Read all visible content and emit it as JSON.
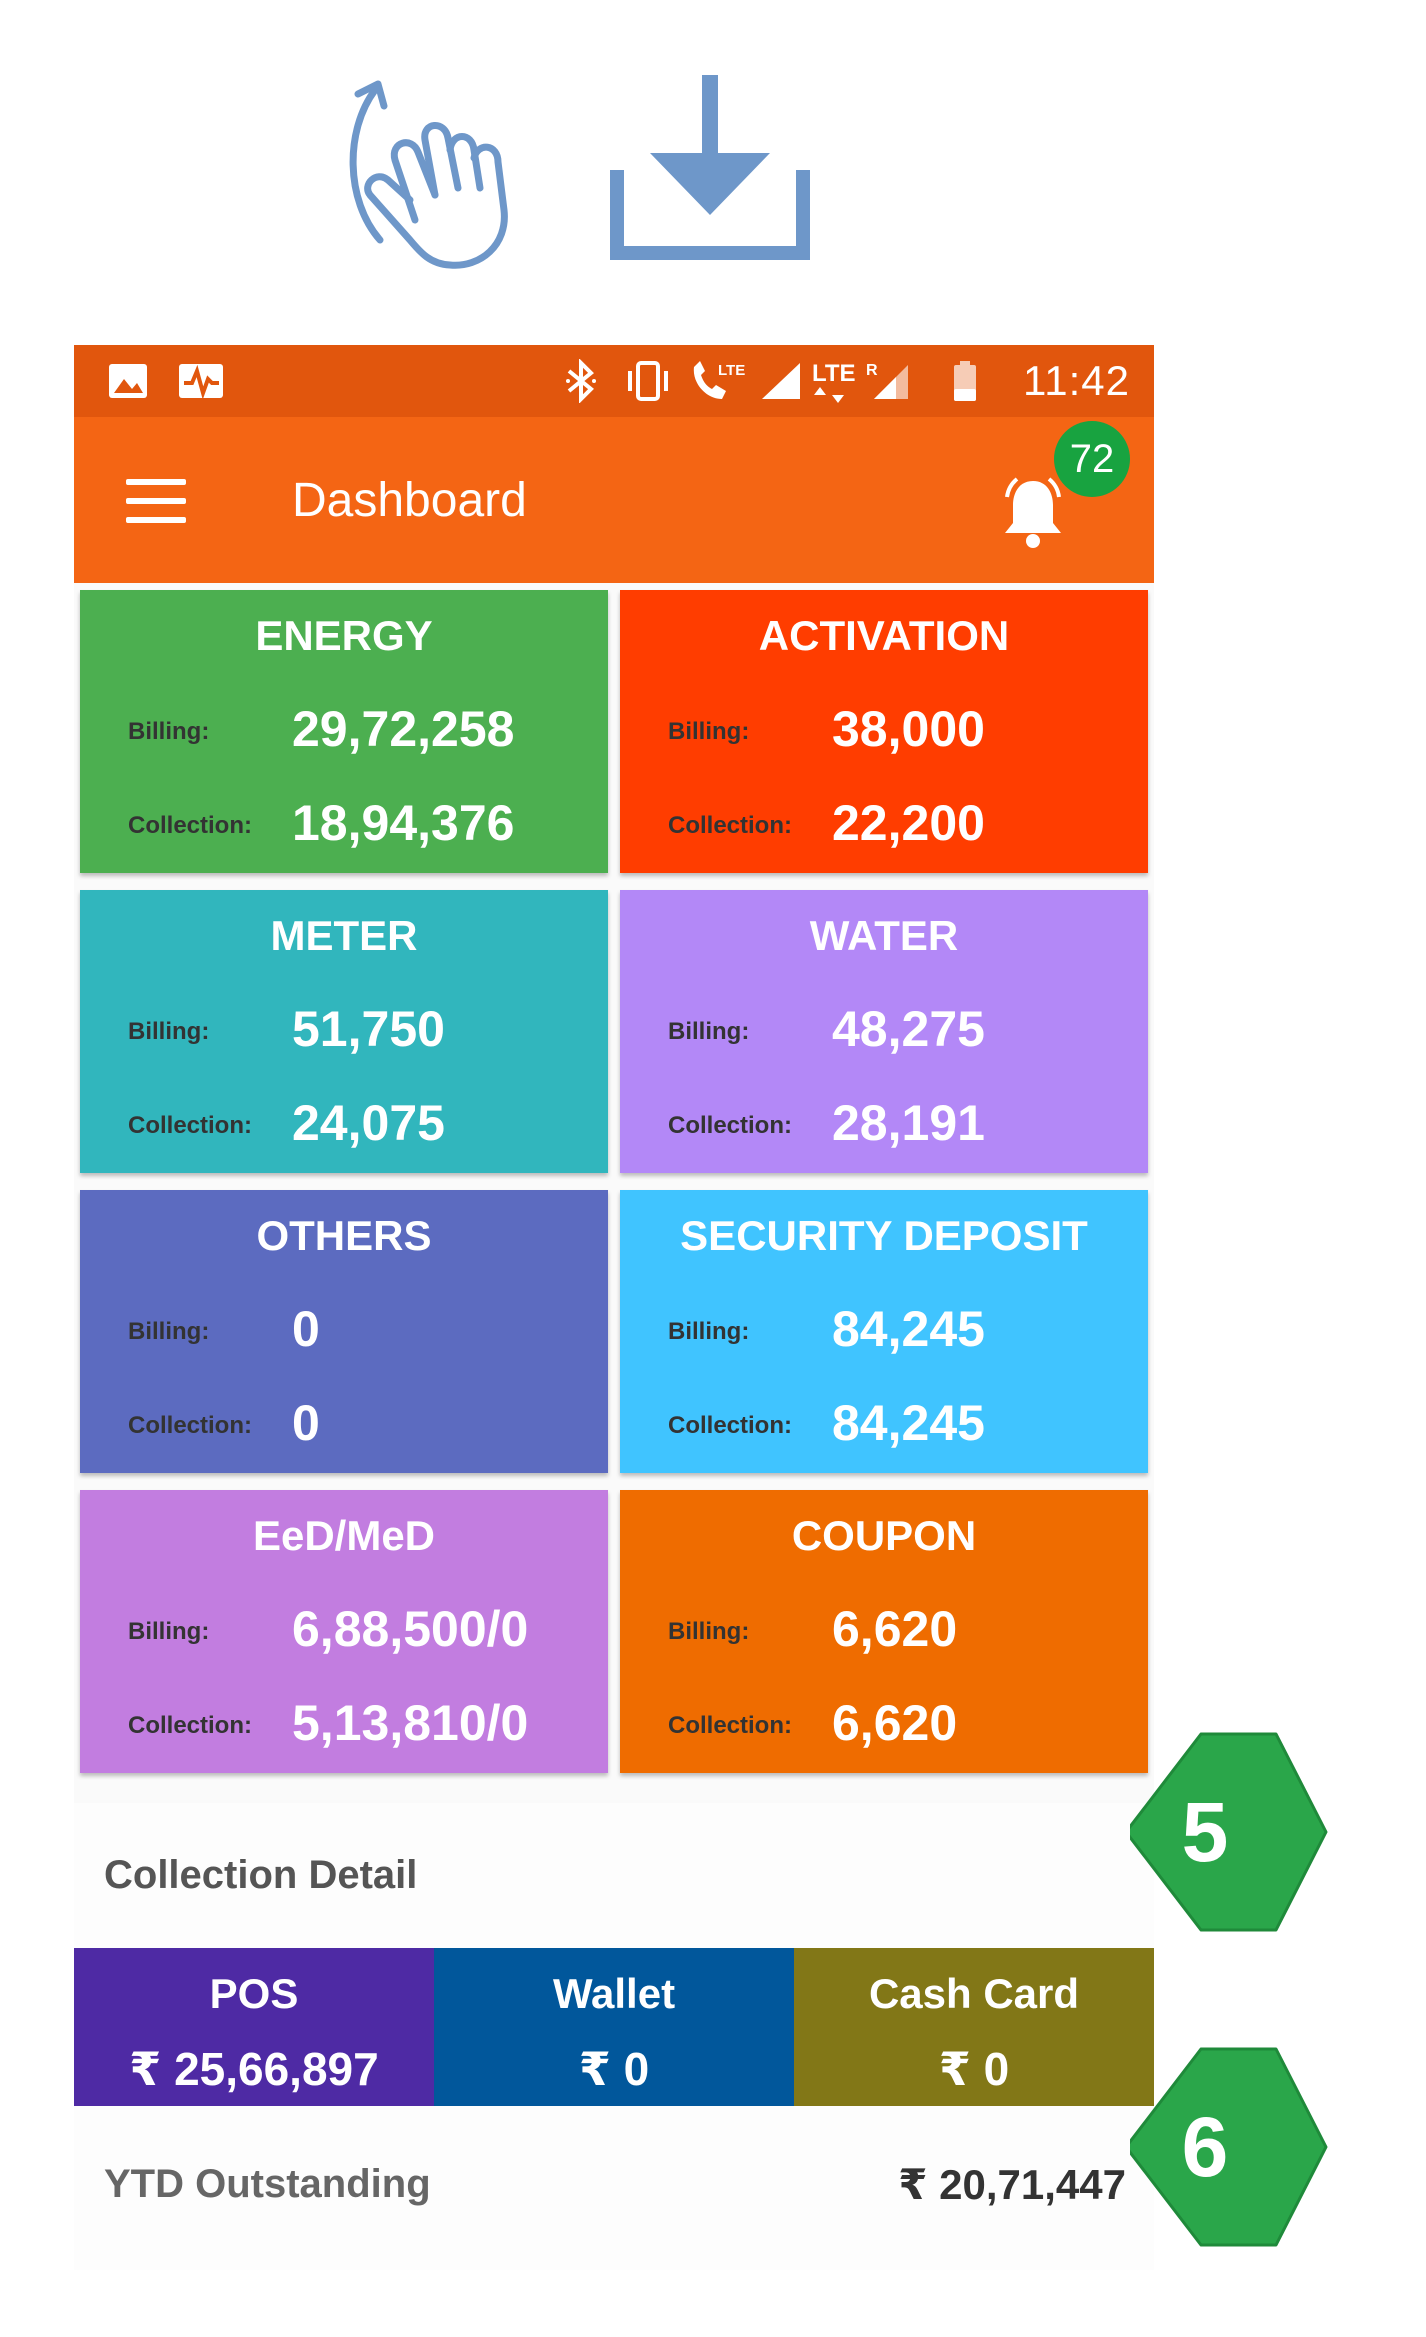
{
  "status_bar": {
    "time": "11:42"
  },
  "app_bar": {
    "title": "Dashboard",
    "notification_count": "72"
  },
  "tiles": [
    {
      "title": "ENERGY",
      "billing_label": "Billing:",
      "billing": "29,72,258",
      "collection_label": "Collection:",
      "collection": "18,94,376",
      "color": "#4caf50"
    },
    {
      "title": "ACTIVATION",
      "billing_label": "Billing:",
      "billing": "38,000",
      "collection_label": "Collection:",
      "collection": "22,200",
      "color": "#ff3d00"
    },
    {
      "title": "METER",
      "billing_label": "Billing:",
      "billing": "51,750",
      "collection_label": "Collection:",
      "collection": "24,075",
      "color": "#31b6bd"
    },
    {
      "title": "WATER",
      "billing_label": "Billing:",
      "billing": "48,275",
      "collection_label": "Collection:",
      "collection": "28,191",
      "color": "#b388f7"
    },
    {
      "title": "OTHERS",
      "billing_label": "Billing:",
      "billing": "0",
      "collection_label": "Collection:",
      "collection": "0",
      "color": "#5c6bc0"
    },
    {
      "title": "SECURITY DEPOSIT",
      "billing_label": "Billing:",
      "billing": "84,245",
      "collection_label": "Collection:",
      "collection": "84,245",
      "color": "#40c4ff"
    },
    {
      "title": "EeD/MeD",
      "billing_label": "Billing:",
      "billing": "6,88,500/0",
      "collection_label": "Collection:",
      "collection": "5,13,810/0",
      "color": "#c27de0"
    },
    {
      "title": "COUPON",
      "billing_label": "Billing:",
      "billing": "6,620",
      "collection_label": "Collection:",
      "collection": "6,620",
      "color": "#ef6c00"
    }
  ],
  "collection_detail": {
    "title": "Collection Detail",
    "methods": [
      {
        "name": "POS",
        "amount": "₹ 25,66,897",
        "color": "#4e2aa4"
      },
      {
        "name": "Wallet",
        "amount": "₹ 0",
        "color": "#01579b"
      },
      {
        "name": "Cash Card",
        "amount": "₹ 0",
        "color": "#827717"
      }
    ]
  },
  "ytd": {
    "label": "YTD Outstanding",
    "value": "₹ 20,71,447"
  },
  "callouts": [
    "5",
    "6"
  ],
  "icons": [
    "swipe-gesture-icon",
    "download-icon",
    "image-icon",
    "activity-icon",
    "bluetooth-icon",
    "vibrate-icon",
    "volte-call-icon",
    "signal-icon",
    "lte-roaming-signal-icon",
    "battery-icon",
    "hamburger-menu-icon",
    "bell-icon"
  ]
}
